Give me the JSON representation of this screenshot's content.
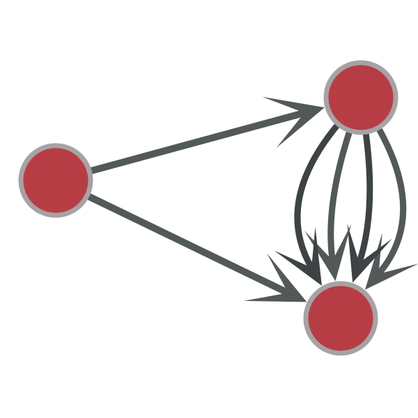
{
  "graph": {
    "directed": true,
    "colors": {
      "background": "#ffffff",
      "node_fill": "#b73d45",
      "node_stroke": "#a7a2a4",
      "edge": "#535859",
      "edge_dark": "#3d4345"
    },
    "nodes": [
      {
        "id": "a",
        "label": ""
      },
      {
        "id": "b",
        "label": ""
      },
      {
        "id": "c",
        "label": ""
      }
    ],
    "edges": [
      {
        "id": "e1",
        "source": "a",
        "target": "b",
        "multiplicity": 1
      },
      {
        "id": "e2",
        "source": "a",
        "target": "c",
        "multiplicity": 1
      },
      {
        "id": "e3",
        "source": "b",
        "target": "c",
        "multiplicity": 4
      }
    ]
  }
}
